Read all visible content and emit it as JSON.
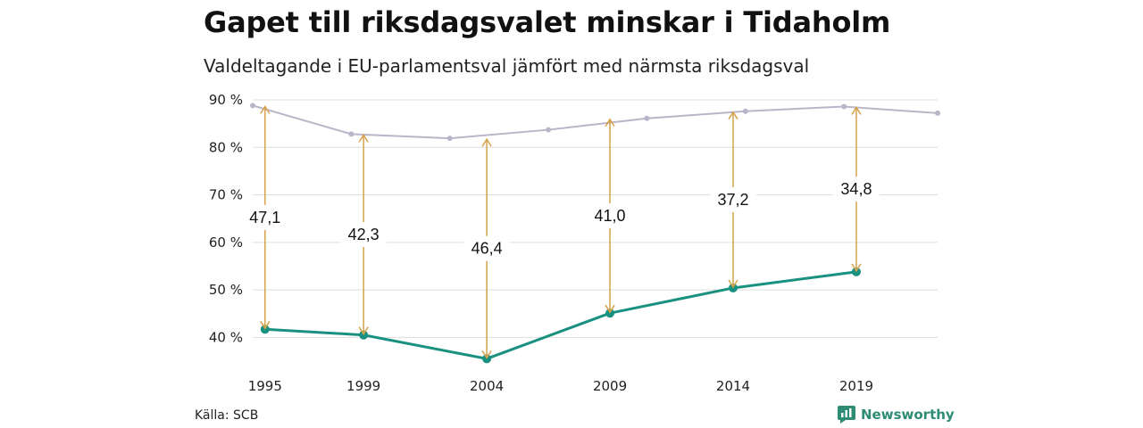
{
  "header": {
    "title": "Gapet till riksdagsvalet minskar i Tidaholm",
    "subtitle": "Valdeltagande i EU-parlamentsval jämfört med närmsta riksdagsval"
  },
  "footer": {
    "source": "Källa: SCB",
    "brand": "Newsworthy"
  },
  "colors": {
    "eu": "#1a9180",
    "riksdag": "#b9b6c9",
    "arrow": "#d4a24a",
    "grid": "#dddddd",
    "brand": "#2e8b74"
  },
  "chart_data": {
    "type": "line",
    "ylim": [
      35,
      90
    ],
    "yticks": [
      40,
      50,
      60,
      70,
      80,
      90
    ],
    "ytick_labels": [
      "40 %",
      "50 %",
      "60 %",
      "70 %",
      "80 %",
      "90 %"
    ],
    "xlim": [
      1994.5,
      2022.3
    ],
    "xticks": [
      1995,
      1999,
      2004,
      2009,
      2014,
      2019
    ],
    "xtick_labels": [
      "1995",
      "1999",
      "2004",
      "2009",
      "2014",
      "2019"
    ],
    "grid": true,
    "series": [
      {
        "key": "riksdag",
        "x": [
          1994.5,
          1998.5,
          2002.5,
          2006.5,
          2010.5,
          2014.5,
          2018.5,
          2022.3
        ],
        "values": [
          88.8,
          82.8,
          81.9,
          83.7,
          86.1,
          87.6,
          88.6,
          87.2
        ]
      },
      {
        "key": "eu",
        "x": [
          1995,
          1999,
          2004,
          2009,
          2014,
          2019
        ],
        "values": [
          41.7,
          40.5,
          35.5,
          45.1,
          50.4,
          53.8
        ]
      }
    ],
    "gaps": [
      {
        "x": 1995,
        "from": 41.7,
        "to": 88.8,
        "label": "47,1"
      },
      {
        "x": 1999,
        "from": 40.5,
        "to": 82.8,
        "label": "42,3"
      },
      {
        "x": 2004,
        "from": 35.5,
        "to": 81.9,
        "label": "46,4"
      },
      {
        "x": 2009,
        "from": 45.1,
        "to": 86.1,
        "label": "41,0"
      },
      {
        "x": 2014,
        "from": 50.4,
        "to": 87.6,
        "label": "37,2"
      },
      {
        "x": 2019,
        "from": 53.8,
        "to": 88.6,
        "label": "34,8"
      }
    ]
  }
}
